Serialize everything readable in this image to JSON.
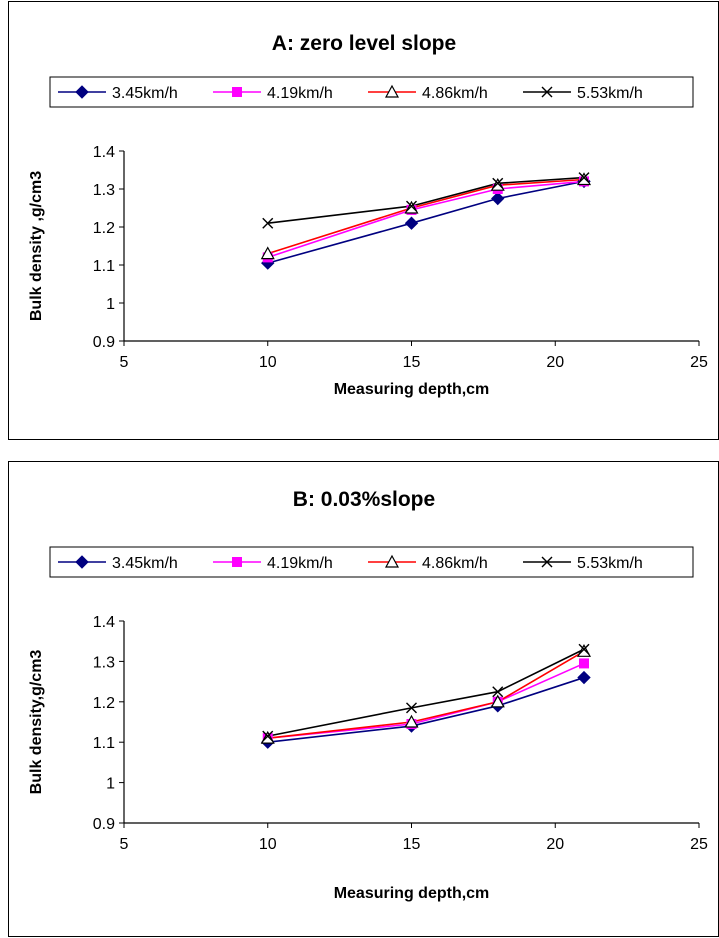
{
  "chart_data": [
    {
      "type": "line",
      "title": "A:  zero level slope",
      "xlabel": "Measuring depth,cm",
      "ylabel": "Bulk density ,g/cm3",
      "xlim": [
        5,
        25
      ],
      "ylim": [
        0.9,
        1.4
      ],
      "xticks": [
        5,
        10,
        15,
        20,
        25
      ],
      "yticks": [
        0.9,
        1,
        1.1,
        1.2,
        1.3,
        1.4
      ],
      "x": [
        10,
        15,
        18,
        21
      ],
      "grid": false,
      "legend_position": "top",
      "series": [
        {
          "name": "3.45km/h",
          "color": "#000080",
          "marker": "diamond",
          "values": [
            1.105,
            1.21,
            1.275,
            1.32
          ]
        },
        {
          "name": "4.19km/h",
          "color": "#FF00FF",
          "marker": "square",
          "values": [
            1.12,
            1.245,
            1.3,
            1.32
          ]
        },
        {
          "name": "4.86km/h",
          "color": "#FF0000",
          "marker": "triangle",
          "values": [
            1.13,
            1.25,
            1.31,
            1.325
          ]
        },
        {
          "name": "5.53km/h",
          "color": "#000000",
          "marker": "x",
          "values": [
            1.21,
            1.255,
            1.315,
            1.33
          ]
        }
      ]
    },
    {
      "type": "line",
      "title": "B:  0.03%slope",
      "xlabel": "Measuring depth,cm",
      "ylabel": "Bulk density,g/cm3",
      "xlim": [
        5,
        25
      ],
      "ylim": [
        0.9,
        1.4
      ],
      "xticks": [
        5,
        10,
        15,
        20,
        25
      ],
      "yticks": [
        0.9,
        1,
        1.1,
        1.2,
        1.3,
        1.4
      ],
      "x": [
        10,
        15,
        18,
        21
      ],
      "grid": false,
      "legend_position": "top",
      "series": [
        {
          "name": "3.45km/h",
          "color": "#000080",
          "marker": "diamond",
          "values": [
            1.1,
            1.14,
            1.19,
            1.26
          ]
        },
        {
          "name": "4.19km/h",
          "color": "#FF00FF",
          "marker": "square",
          "values": [
            1.11,
            1.145,
            1.2,
            1.295
          ]
        },
        {
          "name": "4.86km/h",
          "color": "#FF0000",
          "marker": "triangle",
          "values": [
            1.11,
            1.15,
            1.2,
            1.325
          ]
        },
        {
          "name": "5.53km/h",
          "color": "#000000",
          "marker": "x",
          "values": [
            1.115,
            1.185,
            1.225,
            1.33
          ]
        }
      ]
    }
  ]
}
